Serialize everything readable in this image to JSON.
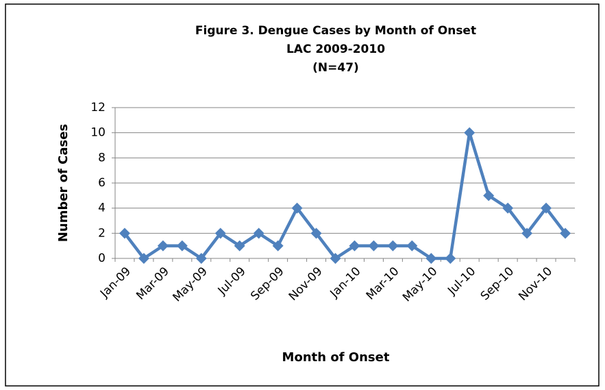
{
  "chart_data": {
    "type": "line",
    "title": [
      "Figure 3. Dengue Cases by Month of Onset",
      "LAC 2009-2010",
      "(N=47)"
    ],
    "x_label": "Month of Onset",
    "y_label": "Number of Cases",
    "categories": [
      "Jan-09",
      null,
      "Mar-09",
      null,
      "May-09",
      null,
      "Jul-09",
      null,
      "Sep-09",
      null,
      "Nov-09",
      null,
      "Jan-10",
      null,
      "Mar-10",
      null,
      "May-10",
      null,
      "Jul-10",
      null,
      "Sep-10",
      null,
      "Nov-10",
      null
    ],
    "series": [
      {
        "name": "Cases",
        "color": "#4f81bd",
        "values": [
          2,
          0,
          1,
          1,
          0,
          2,
          1,
          2,
          1,
          4,
          2,
          0,
          1,
          1,
          1,
          1,
          0,
          0,
          10,
          5,
          4,
          2,
          4,
          2
        ]
      }
    ],
    "ylim": [
      0,
      12
    ],
    "yticks": [
      0,
      2,
      4,
      6,
      8,
      10,
      12
    ],
    "grid": true
  }
}
